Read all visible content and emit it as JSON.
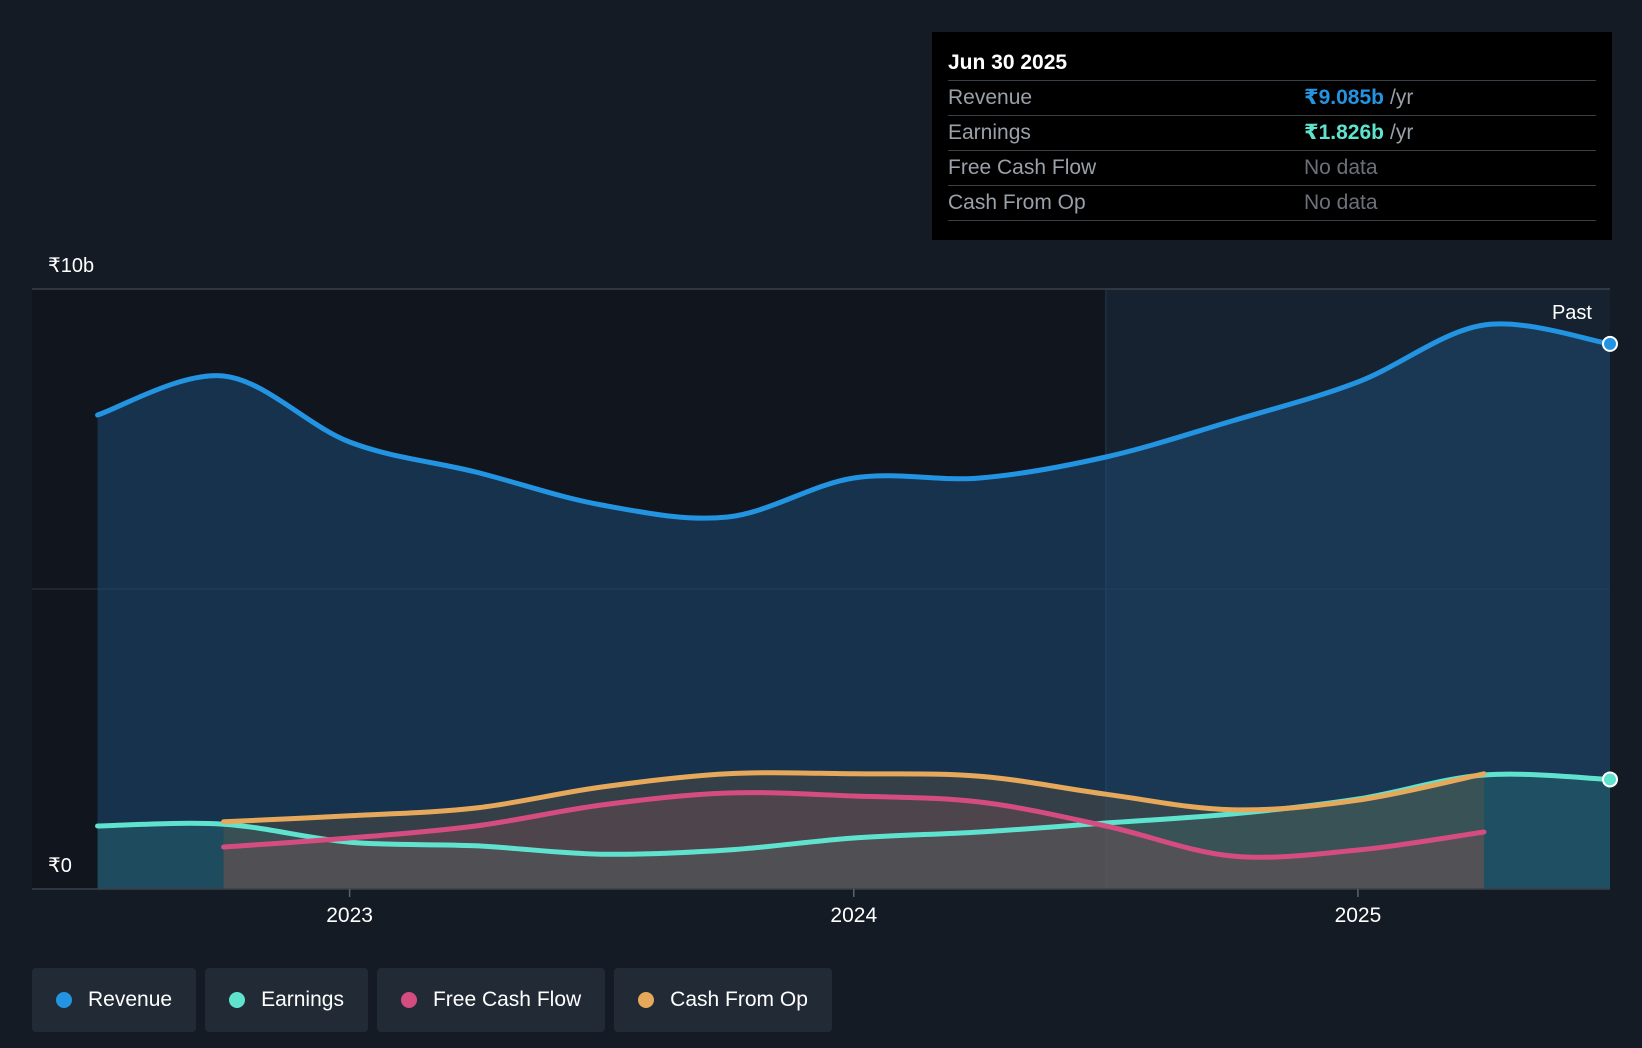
{
  "chart_data": {
    "type": "area",
    "currency": "₹",
    "y_axis": {
      "min": 0,
      "max": 10,
      "unit": "b",
      "tick_labels": [
        "₹10b",
        "₹0"
      ],
      "gridlines": [
        5
      ]
    },
    "x_axis": {
      "min": 2022.37,
      "max": 2025.5,
      "tick_values": [
        2023,
        2024,
        2025
      ],
      "tick_labels": [
        "2023",
        "2024",
        "2025"
      ]
    },
    "past_start": 2024.5,
    "past_label": "Past",
    "series": [
      {
        "name": "Revenue",
        "color": "#2394e1",
        "points": [
          [
            2022.5,
            7.9
          ],
          [
            2022.75,
            8.55
          ],
          [
            2023.0,
            7.45
          ],
          [
            2023.25,
            6.95
          ],
          [
            2023.5,
            6.4
          ],
          [
            2023.75,
            6.2
          ],
          [
            2024.0,
            6.85
          ],
          [
            2024.25,
            6.85
          ],
          [
            2024.5,
            7.2
          ],
          [
            2024.75,
            7.8
          ],
          [
            2025.0,
            8.45
          ],
          [
            2025.25,
            9.4
          ],
          [
            2025.5,
            9.085
          ]
        ]
      },
      {
        "name": "Earnings",
        "color": "#5fe3cf",
        "points": [
          [
            2022.5,
            1.05
          ],
          [
            2022.75,
            1.08
          ],
          [
            2023.0,
            0.78
          ],
          [
            2023.25,
            0.72
          ],
          [
            2023.5,
            0.58
          ],
          [
            2023.75,
            0.65
          ],
          [
            2024.0,
            0.85
          ],
          [
            2024.25,
            0.95
          ],
          [
            2024.5,
            1.1
          ],
          [
            2024.75,
            1.25
          ],
          [
            2025.0,
            1.5
          ],
          [
            2025.25,
            1.9
          ],
          [
            2025.5,
            1.826
          ]
        ]
      },
      {
        "name": "Free Cash Flow",
        "color": "#d54c80",
        "points": [
          [
            2022.75,
            0.7
          ],
          [
            2023.0,
            0.85
          ],
          [
            2023.25,
            1.05
          ],
          [
            2023.5,
            1.4
          ],
          [
            2023.75,
            1.6
          ],
          [
            2024.0,
            1.55
          ],
          [
            2024.25,
            1.45
          ],
          [
            2024.5,
            1.05
          ],
          [
            2024.75,
            0.55
          ],
          [
            2025.0,
            0.65
          ],
          [
            2025.25,
            0.95
          ]
        ]
      },
      {
        "name": "Cash From Op",
        "color": "#e6a95c",
        "points": [
          [
            2022.75,
            1.12
          ],
          [
            2023.0,
            1.22
          ],
          [
            2023.25,
            1.35
          ],
          [
            2023.5,
            1.7
          ],
          [
            2023.75,
            1.92
          ],
          [
            2024.0,
            1.92
          ],
          [
            2024.25,
            1.88
          ],
          [
            2024.5,
            1.58
          ],
          [
            2024.75,
            1.32
          ],
          [
            2025.0,
            1.48
          ],
          [
            2025.25,
            1.92
          ]
        ]
      }
    ]
  },
  "tooltip": {
    "date": "Jun 30 2025",
    "rows": [
      {
        "label": "Revenue",
        "value": "₹9.085b",
        "unit": "/yr",
        "color": "#2394e1"
      },
      {
        "label": "Earnings",
        "value": "₹1.826b",
        "unit": "/yr",
        "color": "#5fe3cf"
      },
      {
        "label": "Free Cash Flow",
        "nodata": "No data"
      },
      {
        "label": "Cash From Op",
        "nodata": "No data"
      }
    ]
  },
  "legend": [
    {
      "label": "Revenue",
      "color": "#2394e1"
    },
    {
      "label": "Earnings",
      "color": "#5fe3cf"
    },
    {
      "label": "Free Cash Flow",
      "color": "#d54c80"
    },
    {
      "label": "Cash From Op",
      "color": "#e6a95c"
    }
  ]
}
